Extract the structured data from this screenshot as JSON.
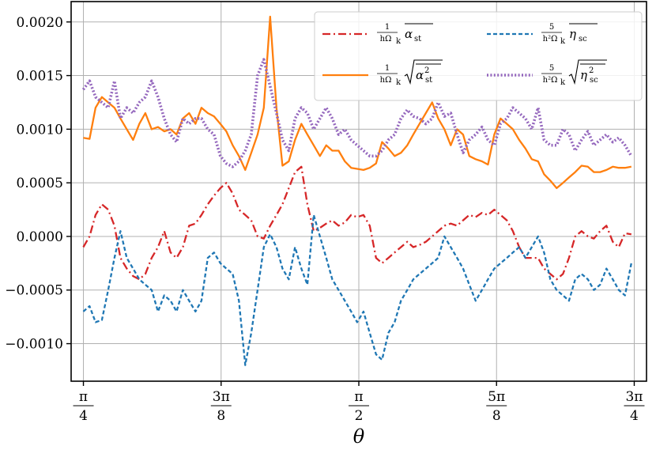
{
  "chart_data": {
    "type": "line",
    "xlabel": "θ",
    "ylabel": "",
    "xlim": [
      0.7504,
      2.3912
    ],
    "ylim": [
      -0.00135,
      0.00219
    ],
    "grid": true,
    "legend_position": "top-right",
    "legend_columns": 2,
    "x_ticks": [
      {
        "value": 0.7854,
        "num": "π",
        "den": "4"
      },
      {
        "value": 1.1781,
        "num": "3π",
        "den": "8"
      },
      {
        "value": 1.5708,
        "num": "π",
        "den": "2"
      },
      {
        "value": 1.9635,
        "num": "5π",
        "den": "8"
      },
      {
        "value": 2.3562,
        "num": "3π",
        "den": "4"
      }
    ],
    "y_ticks": [
      {
        "value": 0.002,
        "label": "0.0020"
      },
      {
        "value": 0.0015,
        "label": "0.0015"
      },
      {
        "value": 0.001,
        "label": "0.0010"
      },
      {
        "value": 0.0005,
        "label": "0.0005"
      },
      {
        "value": 0.0,
        "label": "0.0000"
      },
      {
        "value": -0.0005,
        "label": "−0.0005"
      },
      {
        "value": -0.001,
        "label": "−0.0010"
      }
    ],
    "series": [
      {
        "key": "alpha_mean",
        "color": "#d62728",
        "dash": "10,4,2,4",
        "legend": {
          "coef_num": "1",
          "coef_den": "hΩ",
          "coef_den_sub": "k",
          "sym": "α",
          "sub": "st",
          "sqrt": false,
          "sup": ""
        },
        "x": [
          0.785,
          0.803,
          0.82,
          0.838,
          0.856,
          0.874,
          0.891,
          0.909,
          0.927,
          0.945,
          0.962,
          0.98,
          0.998,
          1.016,
          1.034,
          1.051,
          1.069,
          1.087,
          1.105,
          1.122,
          1.14,
          1.158,
          1.176,
          1.193,
          1.211,
          1.229,
          1.247,
          1.264,
          1.282,
          1.3,
          1.318,
          1.336,
          1.353,
          1.371,
          1.389,
          1.407,
          1.424,
          1.442,
          1.46,
          1.478,
          1.495,
          1.513,
          1.531,
          1.549,
          1.566,
          1.584,
          1.602,
          1.62,
          1.637,
          1.655,
          1.673,
          1.691,
          1.709,
          1.726,
          1.744,
          1.762,
          1.78,
          1.797,
          1.815,
          1.833,
          1.851,
          1.868,
          1.886,
          1.904,
          1.922,
          1.939,
          1.957,
          1.975,
          1.993,
          2.01,
          2.028,
          2.046,
          2.064,
          2.082,
          2.099,
          2.117,
          2.135,
          2.153,
          2.17,
          2.188,
          2.206,
          2.224,
          2.241,
          2.259,
          2.277,
          2.295,
          2.312,
          2.33,
          2.348
        ],
        "y": [
          -0.0001,
          0.0,
          0.0002,
          0.0003,
          0.00025,
          0.0001,
          -0.0002,
          -0.0003,
          -0.00037,
          -0.0004,
          -0.00035,
          -0.0002,
          -0.0001,
          5e-05,
          -0.00015,
          -0.0002,
          -0.0001,
          0.0001,
          0.00012,
          0.0002,
          0.0003,
          0.00038,
          0.00045,
          0.0005,
          0.0004,
          0.00025,
          0.0002,
          0.00015,
          0.0,
          -2e-05,
          0.0001,
          0.0002,
          0.0003,
          0.00045,
          0.0006,
          0.00065,
          0.0003,
          5e-05,
          8e-05,
          0.00012,
          0.00015,
          0.0001,
          0.00013,
          0.0002,
          0.00018,
          0.0002,
          0.0001,
          -0.0002,
          -0.00025,
          -0.0002,
          -0.00015,
          -0.0001,
          -5e-05,
          -0.0001,
          -8e-05,
          -5e-05,
          0.0,
          5e-05,
          0.0001,
          0.00012,
          0.0001,
          0.00015,
          0.0002,
          0.00018,
          0.00022,
          0.0002,
          0.00025,
          0.0002,
          0.00015,
          5e-05,
          -0.0001,
          -0.0002,
          -0.0002,
          -0.0002,
          -0.0003,
          -0.00035,
          -0.0004,
          -0.00035,
          -0.0002,
          0.0,
          5e-05,
          0.0,
          -2e-05,
          5e-05,
          0.0001,
          -5e-05,
          -0.0001,
          3e-05,
          2e-05
        ]
      },
      {
        "key": "alpha_rms",
        "color": "#ff7f0e",
        "dash": "",
        "legend": {
          "coef_num": "1",
          "coef_den": "hΩ",
          "coef_den_sub": "k",
          "sym": "α",
          "sub": "st",
          "sqrt": true,
          "sup": "2"
        },
        "x": [
          0.785,
          0.803,
          0.82,
          0.838,
          0.856,
          0.874,
          0.891,
          0.909,
          0.927,
          0.945,
          0.962,
          0.98,
          0.998,
          1.016,
          1.034,
          1.051,
          1.069,
          1.087,
          1.105,
          1.122,
          1.14,
          1.158,
          1.176,
          1.193,
          1.211,
          1.229,
          1.247,
          1.264,
          1.282,
          1.3,
          1.318,
          1.336,
          1.353,
          1.371,
          1.389,
          1.407,
          1.424,
          1.442,
          1.46,
          1.478,
          1.495,
          1.513,
          1.531,
          1.549,
          1.566,
          1.584,
          1.602,
          1.62,
          1.637,
          1.655,
          1.673,
          1.691,
          1.709,
          1.726,
          1.744,
          1.762,
          1.78,
          1.797,
          1.815,
          1.833,
          1.851,
          1.868,
          1.886,
          1.904,
          1.922,
          1.939,
          1.957,
          1.975,
          1.993,
          2.01,
          2.028,
          2.046,
          2.064,
          2.082,
          2.099,
          2.117,
          2.135,
          2.153,
          2.17,
          2.188,
          2.206,
          2.224,
          2.241,
          2.259,
          2.277,
          2.295,
          2.312,
          2.33,
          2.348
        ],
        "y": [
          0.00092,
          0.00091,
          0.0012,
          0.0013,
          0.00125,
          0.0012,
          0.0011,
          0.001,
          0.0009,
          0.00105,
          0.00115,
          0.001,
          0.00102,
          0.00098,
          0.001,
          0.00095,
          0.0011,
          0.00115,
          0.00105,
          0.0012,
          0.00115,
          0.00112,
          0.00105,
          0.00098,
          0.00085,
          0.00075,
          0.00062,
          0.00078,
          0.00095,
          0.0012,
          0.00205,
          0.0012,
          0.00066,
          0.0007,
          0.0009,
          0.00105,
          0.00095,
          0.00085,
          0.00075,
          0.00085,
          0.0008,
          0.0008,
          0.0007,
          0.00064,
          0.00063,
          0.00062,
          0.00064,
          0.00068,
          0.00088,
          0.00082,
          0.00075,
          0.00078,
          0.00085,
          0.00095,
          0.00105,
          0.00115,
          0.00125,
          0.0011,
          0.001,
          0.00085,
          0.001,
          0.00095,
          0.00075,
          0.00072,
          0.0007,
          0.00067,
          0.00095,
          0.0011,
          0.00105,
          0.001,
          0.0009,
          0.00082,
          0.00072,
          0.0007,
          0.00058,
          0.00052,
          0.00045,
          0.0005,
          0.00055,
          0.0006,
          0.00066,
          0.00065,
          0.0006,
          0.0006,
          0.00062,
          0.00065,
          0.00064,
          0.00064,
          0.00065
        ]
      },
      {
        "key": "eta_mean",
        "color": "#1f77b4",
        "dash": "5,3",
        "legend": {
          "coef_num": "5",
          "coef_den": "h²Ω",
          "coef_den_sub": "k",
          "sym": "η",
          "sub": "sc",
          "sqrt": false,
          "sup": ""
        },
        "x": [
          0.785,
          0.803,
          0.82,
          0.838,
          0.856,
          0.874,
          0.891,
          0.909,
          0.927,
          0.945,
          0.962,
          0.98,
          0.998,
          1.016,
          1.034,
          1.051,
          1.069,
          1.087,
          1.105,
          1.122,
          1.14,
          1.158,
          1.176,
          1.193,
          1.211,
          1.229,
          1.247,
          1.264,
          1.282,
          1.3,
          1.318,
          1.336,
          1.353,
          1.371,
          1.389,
          1.407,
          1.424,
          1.442,
          1.46,
          1.478,
          1.495,
          1.513,
          1.531,
          1.549,
          1.566,
          1.584,
          1.602,
          1.62,
          1.637,
          1.655,
          1.673,
          1.691,
          1.709,
          1.726,
          1.744,
          1.762,
          1.78,
          1.797,
          1.815,
          1.833,
          1.851,
          1.868,
          1.886,
          1.904,
          1.922,
          1.939,
          1.957,
          1.975,
          1.993,
          2.01,
          2.028,
          2.046,
          2.064,
          2.082,
          2.099,
          2.117,
          2.135,
          2.153,
          2.17,
          2.188,
          2.206,
          2.224,
          2.241,
          2.259,
          2.277,
          2.295,
          2.312,
          2.33,
          2.348
        ],
        "y": [
          -0.0007,
          -0.00065,
          -0.0008,
          -0.00078,
          -0.0005,
          -0.0002,
          5e-05,
          -0.0002,
          -0.0003,
          -0.0004,
          -0.00045,
          -0.0005,
          -0.0007,
          -0.00055,
          -0.0006,
          -0.0007,
          -0.0005,
          -0.0006,
          -0.0007,
          -0.0006,
          -0.0002,
          -0.00015,
          -0.00025,
          -0.0003,
          -0.00035,
          -0.0006,
          -0.0012,
          -0.0009,
          -0.0005,
          -0.0001,
          2e-05,
          -0.0001,
          -0.0003,
          -0.0004,
          -0.0001,
          -0.0003,
          -0.00045,
          0.0002,
          0.0,
          -0.0002,
          -0.0004,
          -0.0005,
          -0.0006,
          -0.0007,
          -0.0008,
          -0.0007,
          -0.0009,
          -0.0011,
          -0.00115,
          -0.0009,
          -0.0008,
          -0.0006,
          -0.0005,
          -0.0004,
          -0.00035,
          -0.0003,
          -0.00025,
          -0.0002,
          0.0,
          -0.0001,
          -0.0002,
          -0.0003,
          -0.00045,
          -0.0006,
          -0.0005,
          -0.0004,
          -0.0003,
          -0.00025,
          -0.0002,
          -0.00015,
          -0.0001,
          -0.0002,
          -0.0001,
          0.0,
          -0.00015,
          -0.0004,
          -0.0005,
          -0.00055,
          -0.0006,
          -0.0004,
          -0.00035,
          -0.0004,
          -0.0005,
          -0.00045,
          -0.0003,
          -0.0004,
          -0.0005,
          -0.00055,
          -0.00025
        ]
      },
      {
        "key": "eta_rms",
        "color": "#9467bd",
        "dash": "2,2.4",
        "legend": {
          "coef_num": "5",
          "coef_den": "h²Ω",
          "coef_den_sub": "k",
          "sym": "η",
          "sub": "sc",
          "sqrt": true,
          "sup": "2"
        },
        "x": [
          0.785,
          0.803,
          0.82,
          0.838,
          0.856,
          0.874,
          0.891,
          0.909,
          0.927,
          0.945,
          0.962,
          0.98,
          0.998,
          1.016,
          1.034,
          1.051,
          1.069,
          1.087,
          1.105,
          1.122,
          1.14,
          1.158,
          1.176,
          1.193,
          1.211,
          1.229,
          1.247,
          1.264,
          1.282,
          1.3,
          1.318,
          1.336,
          1.353,
          1.371,
          1.389,
          1.407,
          1.424,
          1.442,
          1.46,
          1.478,
          1.495,
          1.513,
          1.531,
          1.549,
          1.566,
          1.584,
          1.602,
          1.62,
          1.637,
          1.655,
          1.673,
          1.691,
          1.709,
          1.726,
          1.744,
          1.762,
          1.78,
          1.797,
          1.815,
          1.833,
          1.851,
          1.868,
          1.886,
          1.904,
          1.922,
          1.939,
          1.957,
          1.975,
          1.993,
          2.01,
          2.028,
          2.046,
          2.064,
          2.082,
          2.099,
          2.117,
          2.135,
          2.153,
          2.17,
          2.188,
          2.206,
          2.224,
          2.241,
          2.259,
          2.277,
          2.295,
          2.312,
          2.33,
          2.348
        ],
        "y": [
          0.00137,
          0.00145,
          0.0013,
          0.00125,
          0.0012,
          0.00145,
          0.0011,
          0.0012,
          0.00115,
          0.00125,
          0.0013,
          0.00145,
          0.0013,
          0.0011,
          0.00095,
          0.00088,
          0.0011,
          0.00105,
          0.0011,
          0.0011,
          0.001,
          0.00095,
          0.00075,
          0.00068,
          0.00065,
          0.0007,
          0.0008,
          0.00095,
          0.0015,
          0.00165,
          0.0014,
          0.00115,
          0.0009,
          0.0008,
          0.0011,
          0.0012,
          0.00115,
          0.001,
          0.0011,
          0.0012,
          0.0011,
          0.00095,
          0.001,
          0.0009,
          0.00085,
          0.0008,
          0.00075,
          0.00075,
          0.0008,
          0.0009,
          0.00095,
          0.0011,
          0.00118,
          0.00112,
          0.0011,
          0.00105,
          0.0011,
          0.00125,
          0.00112,
          0.00115,
          0.00095,
          0.00078,
          0.0009,
          0.00095,
          0.00102,
          0.0009,
          0.00085,
          0.00105,
          0.0011,
          0.0012,
          0.00115,
          0.0011,
          0.001,
          0.0012,
          0.0009,
          0.00085,
          0.00085,
          0.001,
          0.00095,
          0.0008,
          0.0009,
          0.00098,
          0.00085,
          0.0009,
          0.00095,
          0.00088,
          0.00092,
          0.00085,
          0.00075
        ]
      }
    ]
  }
}
